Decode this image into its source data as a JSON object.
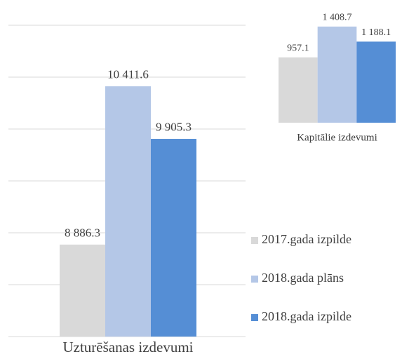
{
  "chart_data": [
    {
      "type": "bar",
      "categories": [
        "Uzturēšanas izdevumi"
      ],
      "series": [
        {
          "name": "2017.gada izpilde",
          "color": "#d9d9d9",
          "values": [
            8886.3
          ],
          "value_labels": [
            "8 886.3"
          ]
        },
        {
          "name": "2018.gada plāns",
          "color": "#b4c7e7",
          "values": [
            10411.6
          ],
          "value_labels": [
            "10 411.6"
          ]
        },
        {
          "name": "2018.gada izpilde",
          "color": "#558ed5",
          "values": [
            9905.3
          ],
          "value_labels": [
            "9 905.3"
          ]
        }
      ],
      "ylim": [
        8000,
        11000
      ],
      "yticks": [
        8000,
        8500,
        9000,
        9500,
        10000,
        10500,
        11000
      ],
      "grid": true
    },
    {
      "type": "bar",
      "categories": [
        "Kapitālie izdevumi"
      ],
      "series": [
        {
          "color": "#d9d9d9",
          "values": [
            957.1
          ],
          "value_labels": [
            "957.1"
          ]
        },
        {
          "color": "#b4c7e7",
          "values": [
            1408.7
          ],
          "value_labels": [
            "1 408.7"
          ]
        },
        {
          "color": "#558ed5",
          "values": [
            1188.1
          ],
          "value_labels": [
            "1 188.1"
          ]
        }
      ],
      "ylim": [
        0,
        1500
      ],
      "grid": false
    }
  ]
}
